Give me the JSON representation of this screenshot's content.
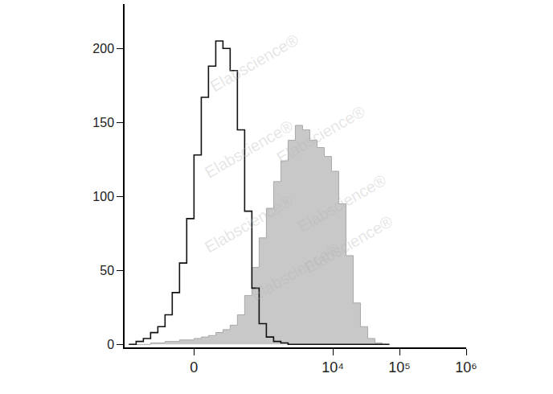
{
  "chart_data": {
    "type": "histogram",
    "bins": [
      -774,
      -598,
      -460,
      -351,
      -264,
      -194,
      -136,
      -86,
      -42,
      0,
      42,
      86,
      136,
      194,
      264,
      351,
      460,
      598,
      774,
      998,
      1285,
      1653,
      2125,
      2730,
      3506,
      4503,
      5783,
      7425,
      9535,
      12243,
      15720,
      20183,
      25914,
      33281,
      42735,
      54873,
      70460
    ],
    "series": [
      {
        "type": "area",
        "color": "#c8c8c8",
        "values": [
          0,
          0,
          0,
          1,
          1,
          2,
          2,
          3,
          3,
          4,
          5,
          6,
          8,
          10,
          13,
          20,
          33,
          52,
          72,
          92,
          110,
          124,
          138,
          148,
          145,
          138,
          133,
          127,
          117,
          95,
          60,
          28,
          12,
          4,
          1,
          0
        ]
      },
      {
        "type": "line",
        "color": "#111111",
        "values": [
          0,
          2,
          4,
          8,
          12,
          20,
          35,
          55,
          85,
          128,
          167,
          188,
          205,
          200,
          185,
          145,
          90,
          38,
          14,
          5,
          2,
          1,
          0,
          0,
          0,
          0,
          0,
          0,
          0,
          0,
          0,
          0,
          0,
          0,
          0,
          0
        ]
      }
    ],
    "xlim": [
      -900,
      1000000
    ],
    "xticks": [
      0,
      {
        "value": 10000,
        "label": "10⁴"
      },
      {
        "value": 100000,
        "label": "10⁵"
      },
      {
        "value": 1000000,
        "label": "10⁶"
      }
    ],
    "ylim": [
      -2,
      230
    ],
    "yticks": [
      0,
      50,
      100,
      150,
      200
    ],
    "grid": false,
    "annotations": [
      "Elabscience®",
      "Elabscience®",
      "Elabscience®",
      "Elabscience®",
      "Elabscience®",
      "Elabscience®",
      "Elabscience®"
    ]
  }
}
